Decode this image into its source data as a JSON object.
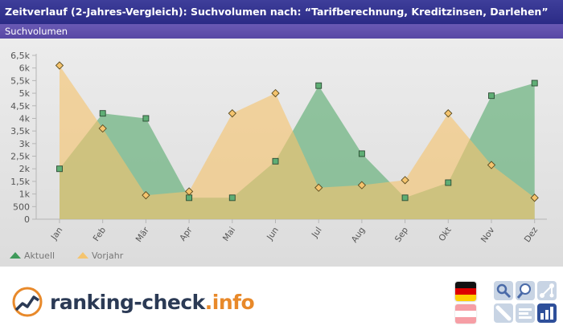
{
  "header": {
    "title": "Zeitverlauf (2-Jahres-Vergleich): Suchvolumen nach: “Tarifberechnung, Kreditzinsen, Darlehen”",
    "subtitle": "Suchvolumen"
  },
  "chart_data": {
    "type": "area",
    "categories": [
      "Jan",
      "Feb",
      "Mär",
      "Apr",
      "Mai",
      "Jun",
      "Jul",
      "Aug",
      "Sep",
      "Okt",
      "Nov",
      "Dez"
    ],
    "series": [
      {
        "name": "Aktuell",
        "values": [
          2000,
          4200,
          4000,
          850,
          850,
          2300,
          5300,
          2600,
          850,
          1450,
          4900,
          5400
        ],
        "color": "#5fae75"
      },
      {
        "name": "Vorjahr",
        "values": [
          6100,
          3600,
          950,
          1100,
          4200,
          5000,
          1250,
          1350,
          1550,
          4200,
          2150,
          850
        ],
        "color": "#f5c46e"
      }
    ],
    "y_ticks": [
      "0",
      "500",
      "1k",
      "1,5k",
      "2k",
      "2,5k",
      "3k",
      "3,5k",
      "4k",
      "4,5k",
      "5k",
      "5,5k",
      "6k",
      "6,5k"
    ],
    "ylim": [
      0,
      6500
    ],
    "legend_position": "bottom-left",
    "grid": false
  },
  "footer": {
    "logo_main": "ranking-check",
    "logo_tld": ".info"
  },
  "colors": {
    "title_bar": "#2f2f8c",
    "sub_bar": "#5f4fac",
    "aktuell": "#5fae75",
    "vorjahr": "#f5c46e",
    "logo_text": "#2b3a55",
    "logo_accent": "#e8892a"
  },
  "icons": [
    "germany-flag-icon",
    "austria-flag-icon",
    "search-tool-icon",
    "zoom-tool-icon",
    "network-tool-icon",
    "edit-tool-icon",
    "list-tool-icon",
    "chart-tool-icon"
  ]
}
